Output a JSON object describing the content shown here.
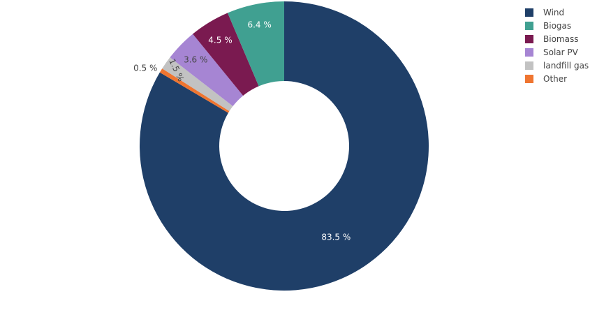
{
  "chart_data": {
    "type": "pie",
    "hole": 0.45,
    "title": "",
    "direction": "clockwise",
    "rotation_start": "12 o'clock",
    "categories": [
      "Wind",
      "Other",
      "landfill gas",
      "Solar PV",
      "Biomass",
      "Biogas"
    ],
    "values": [
      83.5,
      0.5,
      1.5,
      3.6,
      4.5,
      6.4
    ],
    "labels": [
      "83.5 %",
      "0.5 %",
      "1.5 %",
      "3.6 %",
      "4.5 %",
      "6.4 %"
    ],
    "colors": [
      "#1f3f68",
      "#ef7530",
      "#c2c2c2",
      "#a685d3",
      "#7a1a50",
      "#40a091"
    ],
    "label_colors": [
      "#ffffff",
      "#444444",
      "#444444",
      "#444444",
      "#ffffff",
      "#ffffff"
    ],
    "legend_position": "top-right"
  },
  "legend": {
    "items": [
      {
        "label": "Wind",
        "color": "#1f3f68"
      },
      {
        "label": "Biogas",
        "color": "#40a091"
      },
      {
        "label": "Biomass",
        "color": "#7a1a50"
      },
      {
        "label": "Solar PV",
        "color": "#a685d3"
      },
      {
        "label": "landfill gas",
        "color": "#c2c2c2"
      },
      {
        "label": "Other",
        "color": "#ef7530"
      }
    ]
  }
}
